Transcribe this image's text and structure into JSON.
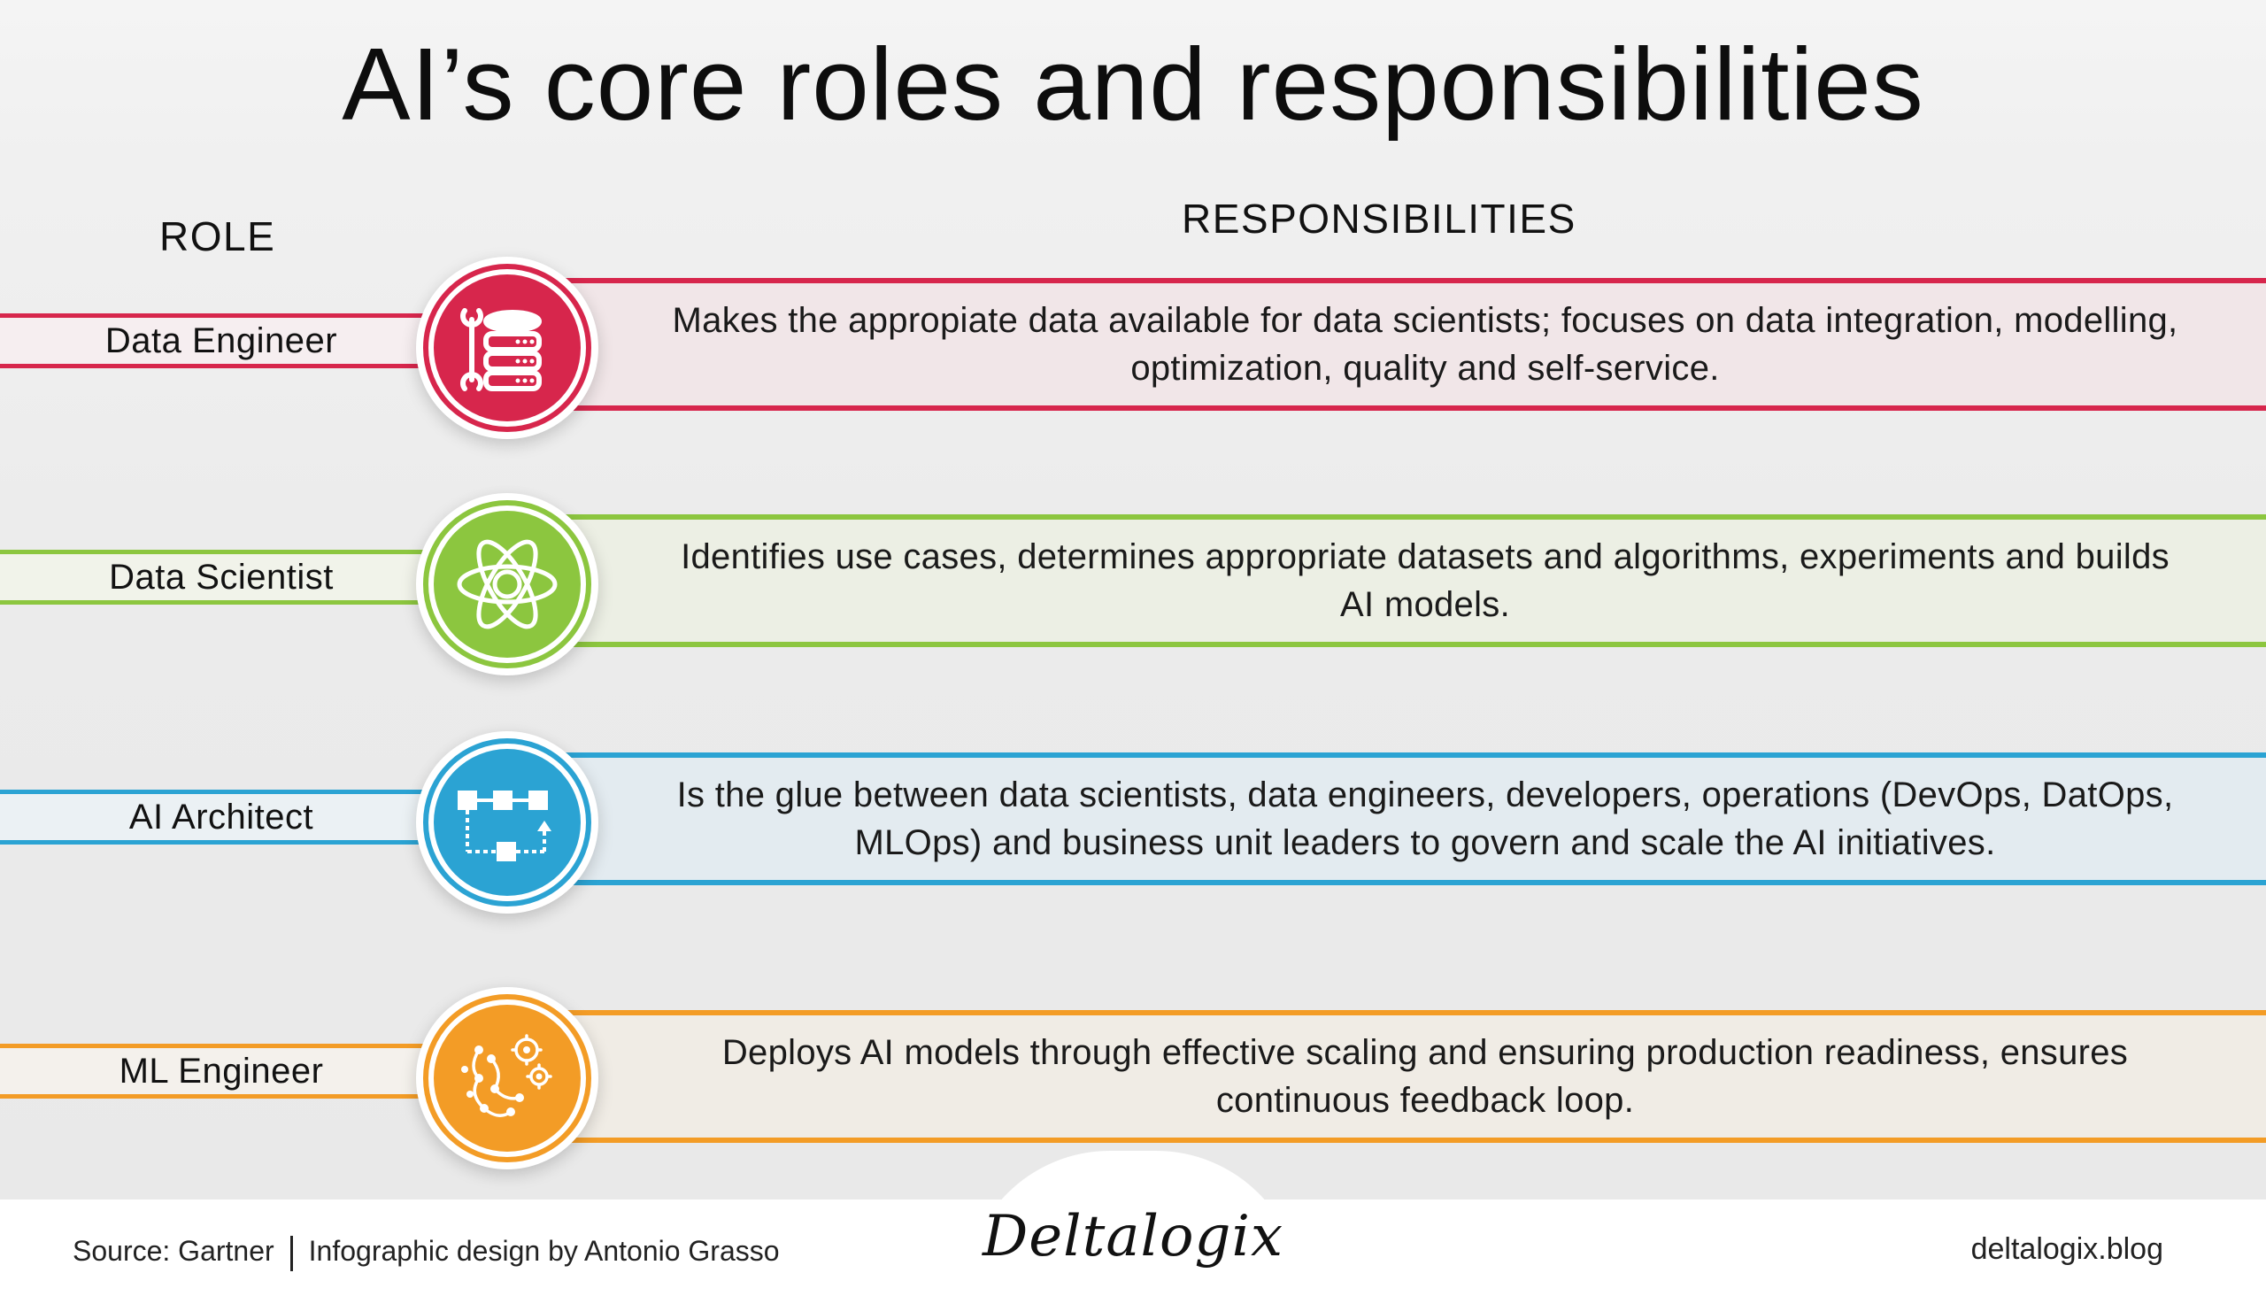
{
  "title": "AI’s core roles and responsibilities",
  "headers": {
    "role": "ROLE",
    "responsibilities": "RESPONSIBILITIES"
  },
  "rows": [
    {
      "role": "Data Engineer",
      "icon": "database-wrench-icon",
      "color": "#d7264c",
      "tint": "#f1e6e8",
      "responsibility": "Makes the appropiate data available for data scientists; focuses on data integration, modelling, optimization, quality and self-service."
    },
    {
      "role": "Data Scientist",
      "icon": "atom-icon",
      "color": "#8cc63f",
      "tint": "#ecefe4",
      "responsibility": "Identifies use cases, determines appropriate datasets and algorithms, experiments and builds AI models."
    },
    {
      "role": "AI Architect",
      "icon": "architecture-flow-icon",
      "color": "#2ba3d3",
      "tint": "#e3ebf0",
      "responsibility": "Is the glue between data scientists, data engineers, developers, operations (DevOps, DatOps, MLOps) and business unit leaders to govern and scale the AI initiatives."
    },
    {
      "role": "ML Engineer",
      "icon": "brain-gears-icon",
      "color": "#f39c26",
      "tint": "#f0ece5",
      "responsibility": "Deploys AI models through effective scaling and ensuring production readiness, ensures continuous feedback loop."
    }
  ],
  "footer": {
    "source": "Source: Gartner",
    "credit": "Infographic design by Antonio Grasso",
    "logo": "Deltalogix",
    "site": "deltalogix.blog"
  }
}
